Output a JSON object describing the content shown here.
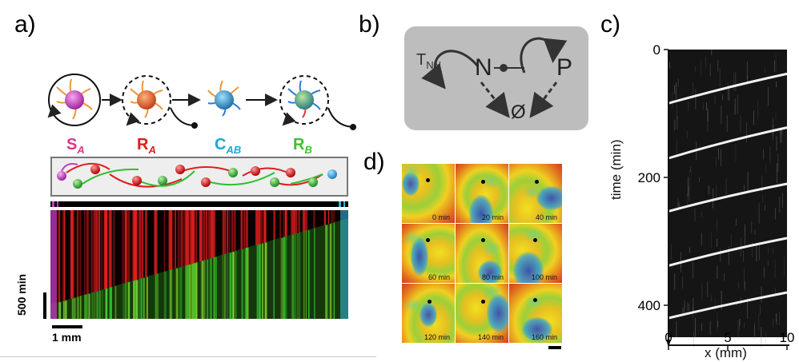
{
  "panels": {
    "a": "a)",
    "b": "b)",
    "c": "c)",
    "d": "d)"
  },
  "panel_a": {
    "species": [
      {
        "main": "S",
        "sub": "A",
        "color": "#e0358a"
      },
      {
        "main": "R",
        "sub": "A",
        "color": "#e01b1b"
      },
      {
        "main": "C",
        "sub": "AB",
        "color": "#1aa6d6"
      },
      {
        "main": "R",
        "sub": "B",
        "color": "#3fbf2f"
      }
    ],
    "scale_time": "500 min",
    "scale_space": "1 mm",
    "colors": {
      "red": "#e62020",
      "green": "#31c42c",
      "magenta": "#c43cc4",
      "cyan": "#2fb4d8",
      "orange": "#e0803a"
    }
  },
  "panel_b": {
    "node_n": "N",
    "node_p": "P",
    "sink": "Ø",
    "rate_main": "T",
    "rate_sub": "NN",
    "box_color": "#bdbdbd"
  },
  "panel_c": {
    "ylabel": "time (min)",
    "xlabel": "x (mm)",
    "yticks": [
      "0",
      "200",
      "400"
    ],
    "xticks": [
      "0",
      "5",
      "10"
    ]
  },
  "panel_d": {
    "frames": [
      "0 min",
      "20 min",
      "40 min",
      "60 min",
      "80 min",
      "100 min",
      "120 min",
      "140 min",
      "160 min"
    ]
  },
  "chart_data": {
    "type": "heatmap",
    "xlabel": "x (mm)",
    "ylabel": "time (min)",
    "xlim": [
      0,
      10
    ],
    "ylim": [
      450,
      0
    ],
    "xticks": [
      0,
      5,
      10
    ],
    "yticks": [
      0,
      200,
      400
    ],
    "series": [
      {
        "values": [
          [
            0,
            84
          ],
          [
            5,
            58
          ],
          [
            10,
            38
          ]
        ]
      },
      {
        "values": [
          [
            0,
            170
          ],
          [
            5,
            142
          ],
          [
            10,
            122
          ]
        ]
      },
      {
        "values": [
          [
            0,
            253
          ],
          [
            5,
            228
          ],
          [
            10,
            210
          ]
        ]
      },
      {
        "values": [
          [
            0,
            338
          ],
          [
            5,
            313
          ],
          [
            10,
            295
          ]
        ]
      },
      {
        "values": [
          [
            0,
            420
          ],
          [
            5,
            398
          ],
          [
            10,
            380
          ]
        ]
      }
    ]
  }
}
